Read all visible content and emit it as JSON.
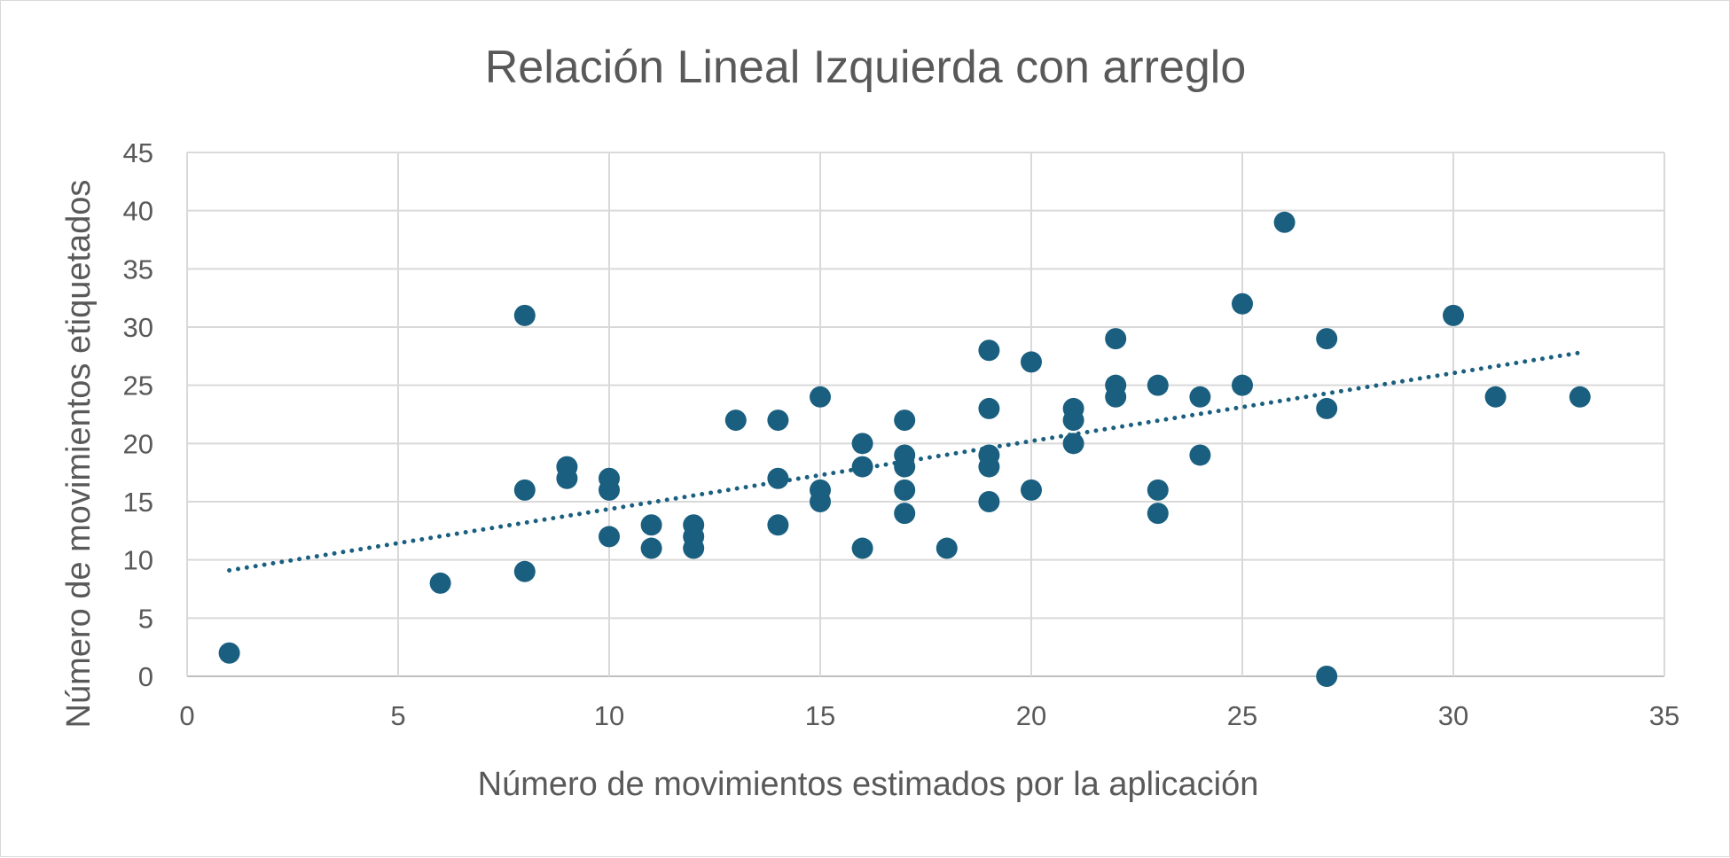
{
  "chart_data": {
    "type": "scatter",
    "title": "Relación Lineal Izquierda con arreglo",
    "xlabel": "Número de movimientos estimados por la aplicación",
    "ylabel": "Número de movimientos etiquetados",
    "xlim": [
      0,
      35
    ],
    "ylim": [
      0,
      45
    ],
    "xticks": [
      0,
      5,
      10,
      15,
      20,
      25,
      30,
      35
    ],
    "yticks": [
      0,
      5,
      10,
      15,
      20,
      25,
      30,
      35,
      40,
      45
    ],
    "grid": true,
    "legend": "none",
    "series": [
      {
        "color": "#1a5f7f",
        "points": [
          [
            1,
            2
          ],
          [
            6,
            8
          ],
          [
            8,
            31
          ],
          [
            8,
            16
          ],
          [
            8,
            9
          ],
          [
            9,
            18
          ],
          [
            9,
            17
          ],
          [
            10,
            17
          ],
          [
            10,
            16
          ],
          [
            10,
            12
          ],
          [
            11,
            13
          ],
          [
            11,
            11
          ],
          [
            12,
            13
          ],
          [
            12,
            12
          ],
          [
            12,
            11
          ],
          [
            13,
            22
          ],
          [
            14,
            22
          ],
          [
            14,
            17
          ],
          [
            14,
            13
          ],
          [
            15,
            24
          ],
          [
            15,
            16
          ],
          [
            15,
            15
          ],
          [
            16,
            20
          ],
          [
            16,
            18
          ],
          [
            16,
            11
          ],
          [
            17,
            22
          ],
          [
            17,
            19
          ],
          [
            17,
            18
          ],
          [
            17,
            16
          ],
          [
            17,
            14
          ],
          [
            18,
            11
          ],
          [
            19,
            28
          ],
          [
            19,
            23
          ],
          [
            19,
            19
          ],
          [
            19,
            18
          ],
          [
            19,
            15
          ],
          [
            20,
            27
          ],
          [
            20,
            16
          ],
          [
            21,
            23
          ],
          [
            21,
            22
          ],
          [
            21,
            20
          ],
          [
            22,
            29
          ],
          [
            22,
            25
          ],
          [
            22,
            24
          ],
          [
            23,
            25
          ],
          [
            23,
            16
          ],
          [
            23,
            14
          ],
          [
            24,
            24
          ],
          [
            24,
            19
          ],
          [
            25,
            32
          ],
          [
            25,
            25
          ],
          [
            26,
            39
          ],
          [
            27,
            29
          ],
          [
            27,
            23
          ],
          [
            27,
            0
          ],
          [
            30,
            31
          ],
          [
            31,
            24
          ],
          [
            33,
            24
          ]
        ]
      }
    ],
    "trendline": {
      "type": "linear",
      "style": "dotted",
      "color": "#1a5f7f",
      "x_range": [
        1,
        33
      ],
      "y_at_start": 9.1,
      "y_at_end": 27.8
    }
  }
}
